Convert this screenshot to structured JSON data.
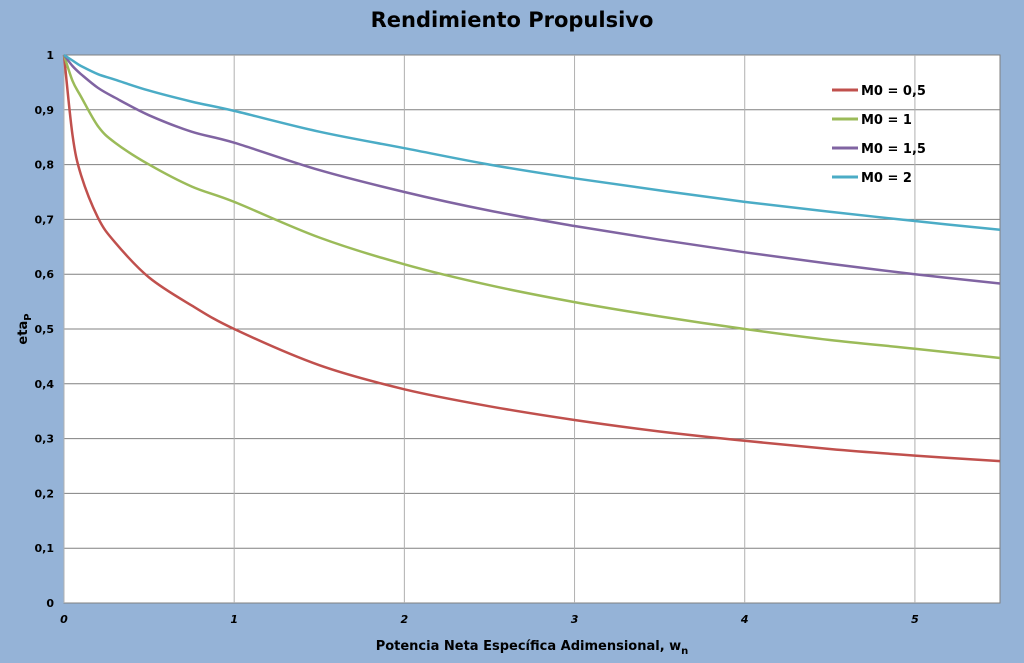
{
  "chart_data": {
    "type": "line",
    "title": "Rendimiento Propulsivo",
    "xlabel": "Potencia Neta Específica Adimensional, w",
    "xlabel_sub": "n",
    "ylabel": "eta",
    "ylabel_sub": "P",
    "xlim": [
      0,
      5.5
    ],
    "ylim": [
      0,
      1
    ],
    "x_ticks": [
      "0",
      "1",
      "2",
      "3",
      "4",
      "5"
    ],
    "y_ticks": [
      "0",
      "0,1",
      "0,2",
      "0,3",
      "0,4",
      "0,5",
      "0,6",
      "0,7",
      "0,8",
      "0,9",
      "1"
    ],
    "grid": true,
    "legend_position": "top-right",
    "x": [
      0,
      0.05,
      0.1,
      0.2,
      0.3,
      0.5,
      0.75,
      1,
      1.5,
      2,
      2.5,
      3,
      3.5,
      4,
      4.5,
      5,
      5.5
    ],
    "series": [
      {
        "name": "M0 = 0,5",
        "color": "#c0504d",
        "values": [
          1,
          0.854,
          0.781,
          0.703,
          0.658,
          0.594,
          0.543,
          0.5,
          0.434,
          0.39,
          0.359,
          0.334,
          0.313,
          0.296,
          0.281,
          0.269,
          0.259
        ]
      },
      {
        "name": "M0 = 1",
        "color": "#9bbb59",
        "values": [
          1,
          0.953,
          0.924,
          0.87,
          0.84,
          0.8,
          0.76,
          0.732,
          0.667,
          0.618,
          0.58,
          0.549,
          0.523,
          0.5,
          0.48,
          0.464,
          0.447
        ]
      },
      {
        "name": "M0 = 1,5",
        "color": "#8064a2",
        "values": [
          1,
          0.98,
          0.965,
          0.94,
          0.922,
          0.89,
          0.86,
          0.84,
          0.79,
          0.75,
          0.716,
          0.688,
          0.663,
          0.64,
          0.619,
          0.6,
          0.583
        ]
      },
      {
        "name": "M0 = 2",
        "color": "#4bacc6",
        "values": [
          1,
          0.99,
          0.98,
          0.965,
          0.955,
          0.935,
          0.915,
          0.898,
          0.86,
          0.83,
          0.8,
          0.775,
          0.753,
          0.732,
          0.714,
          0.697,
          0.681
        ]
      }
    ]
  }
}
